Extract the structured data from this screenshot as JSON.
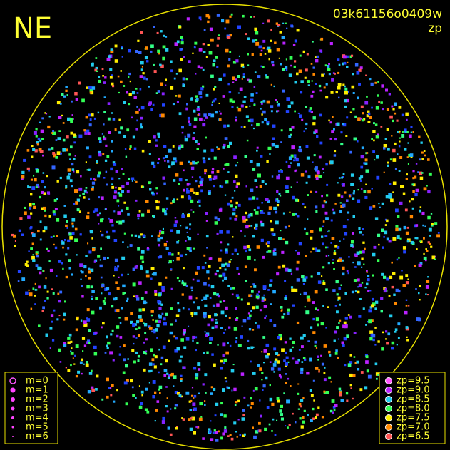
{
  "header": {
    "direction": "NE",
    "image_id": "03k61156o0409w",
    "mode": "zp"
  },
  "magnitude_legend": [
    {
      "label": "m=0"
    },
    {
      "label": "m=1"
    },
    {
      "label": "m=2"
    },
    {
      "label": "m=3"
    },
    {
      "label": "m=4"
    },
    {
      "label": "m=5"
    },
    {
      "label": "m=6"
    }
  ],
  "zp_legend": [
    {
      "label": "zp=9.5",
      "color": "#ff55ff"
    },
    {
      "label": "zp=9.0",
      "color": "#bb22ff"
    },
    {
      "label": "zp=8.5",
      "color": "#22ccee"
    },
    {
      "label": "zp=8.0",
      "color": "#33ff55"
    },
    {
      "label": "zp=7.5",
      "color": "#ffee00"
    },
    {
      "label": "zp=7.0",
      "color": "#ff8800"
    },
    {
      "label": "zp=6.5",
      "color": "#ff5555"
    }
  ]
}
